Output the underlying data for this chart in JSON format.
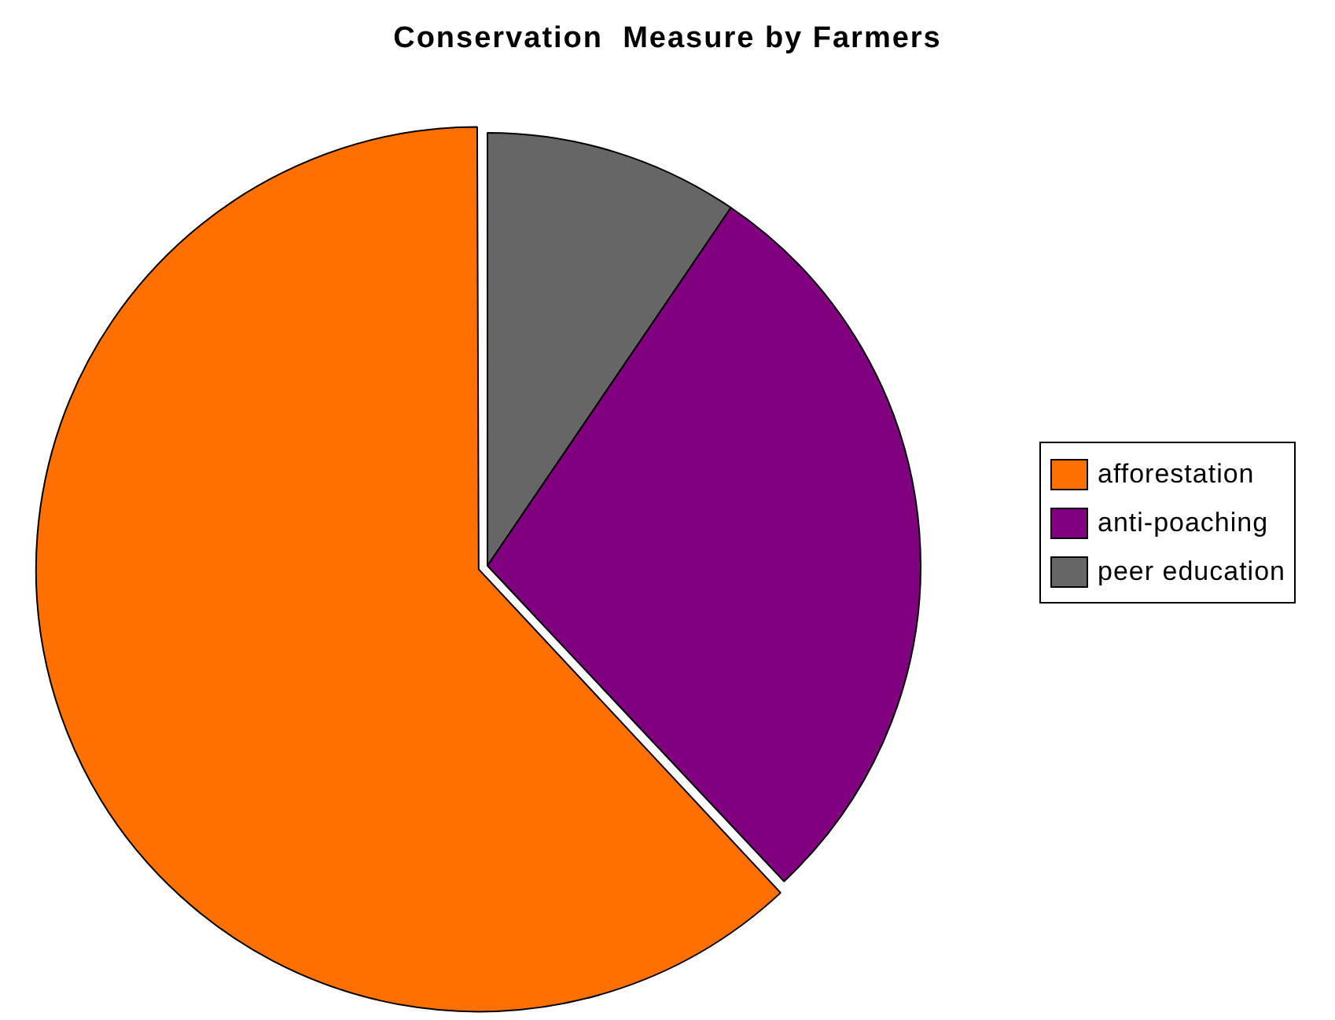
{
  "chart_data": {
    "type": "pie",
    "title": "Conservation  Measure by Farmers",
    "categories": [
      "afforestation",
      "anti-poaching",
      "peer education"
    ],
    "values": [
      62,
      28.5,
      9.5
    ],
    "colors": [
      "#ff7000",
      "#800080",
      "#666666"
    ],
    "legend": "right"
  }
}
